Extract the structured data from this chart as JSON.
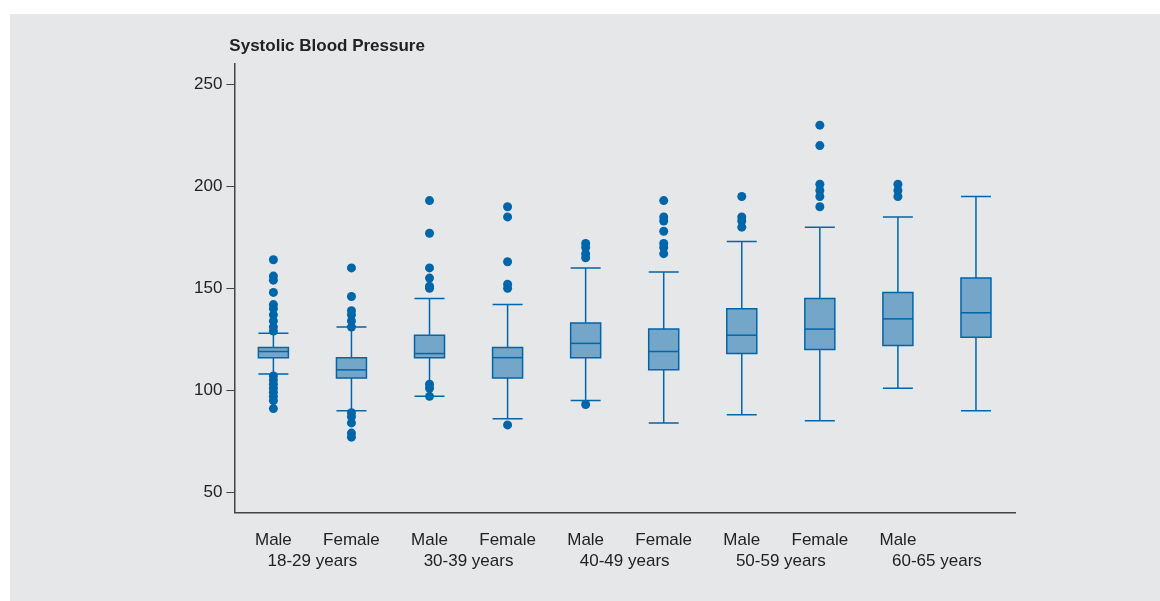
{
  "chart_data": {
    "type": "box",
    "title": "Systolic Blood Pressure",
    "categories": [
      "Male",
      "Female",
      "Male",
      "Female",
      "Male",
      "Female",
      "Male",
      "Female",
      "Male",
      null
    ],
    "series": [
      {
        "color": "#0066aa",
        "boxes": [
          {
            "low": 108,
            "q1": 116,
            "median": 119,
            "q3": 121,
            "high": 128,
            "outliers": [
              164,
              156,
              154,
              148,
              142,
              140,
              137,
              134,
              131,
              129,
              107,
              105,
              103,
              101,
              99,
              97,
              95,
              91
            ]
          },
          {
            "low": 90,
            "q1": 106,
            "median": 110,
            "q3": 116,
            "high": 131,
            "outliers": [
              160,
              146,
              139,
              137,
              134,
              131,
              89,
              87,
              84,
              79,
              77
            ]
          },
          {
            "low": 97,
            "q1": 116,
            "median": 118,
            "q3": 127,
            "high": 145,
            "outliers": [
              193,
              177,
              160,
              155,
              151,
              150,
              103,
              101,
              97
            ]
          },
          {
            "low": 86,
            "q1": 106,
            "median": 116,
            "q3": 121,
            "high": 142,
            "outliers": [
              190,
              185,
              163,
              152,
              150,
              83
            ]
          },
          {
            "low": 95,
            "q1": 116,
            "median": 123,
            "q3": 133,
            "high": 160,
            "outliers": [
              172,
              170,
              167,
              165,
              93
            ]
          },
          {
            "low": 84,
            "q1": 110,
            "median": 119,
            "q3": 130,
            "high": 158,
            "outliers": [
              193,
              185,
              183,
              178,
              172,
              170,
              167
            ]
          },
          {
            "low": 88,
            "q1": 118,
            "median": 127,
            "q3": 140,
            "high": 173,
            "outliers": [
              195,
              185,
              183,
              180
            ]
          },
          {
            "low": 85,
            "q1": 120,
            "median": 130,
            "q3": 145,
            "high": 180,
            "outliers": [
              230,
              220,
              201,
              198,
              195,
              190
            ]
          },
          {
            "low": 101,
            "q1": 122,
            "median": 135,
            "q3": 148,
            "high": 185,
            "outliers": [
              201,
              198,
              195
            ]
          },
          {
            "low": 90,
            "q1": 126,
            "median": 138,
            "q3": 155,
            "high": 195
          }
        ]
      }
    ],
    "ylim": [
      40,
      260
    ],
    "yticks": [
      50,
      100,
      150,
      200,
      250
    ],
    "annotations": [
      "18-29 years",
      "30-39 years",
      "40-49 years",
      "50-59 years",
      "60-65 years"
    ]
  }
}
